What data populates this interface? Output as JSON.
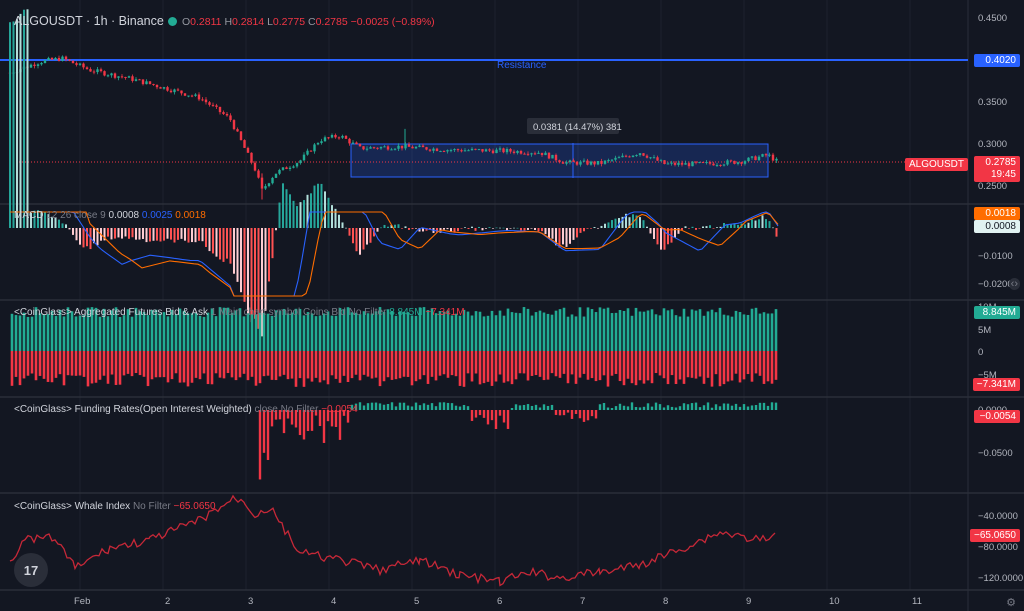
{
  "header": {
    "symbol": "ALGOUSDT · 1h · Binance",
    "o_label": "O",
    "o_val": "0.2811",
    "h_label": "H",
    "h_val": "0.2814",
    "l_label": "L",
    "l_val": "0.2775",
    "c_label": "C",
    "c_val": "0.2785",
    "change": "−0.0025 (−0.89%)"
  },
  "price_axis": [
    "0.4500",
    "0.3500",
    "0.3000",
    "0.2500"
  ],
  "resistance": {
    "label": "Resistance",
    "price": "0.4020"
  },
  "last_price": {
    "symbol": "ALGOUSDT",
    "price": "0.2785",
    "countdown": "19:45"
  },
  "range_box": {
    "measure": "0.0381 (14.47%) 381"
  },
  "macd": {
    "name": "MACD",
    "params": "12 26 close 9",
    "v1": "0.0008",
    "v2": "0.0025",
    "v3": "0.0018",
    "tag_orange": "0.0018",
    "tag_white": "0.0008",
    "axis": [
      "−0.0100",
      "−0.0200"
    ]
  },
  "bid_ask": {
    "name": "<CoinGlass> Aggregated Futures Bid & Ask",
    "params": "1 Main chart symbol Coins Bid No Filter",
    "v1": "8.845M",
    "v2": "−7.341M",
    "axis": [
      "10M",
      "5M",
      "0",
      "−5M"
    ],
    "tag_green": "8.845M",
    "tag_red": "−7.341M"
  },
  "funding": {
    "name": "<CoinGlass> Funding Rates(Open Interest Weighted)",
    "params": "close No Filter",
    "v1": "−0.0054",
    "axis": [
      "0.0000",
      "−0.0500"
    ],
    "tag_red": "−0.0054"
  },
  "whale": {
    "name": "<CoinGlass> Whale Index",
    "params": "No Filter",
    "v1": "−65.0650",
    "axis": [
      "−40.0000",
      "−80.0000",
      "−120.0000"
    ],
    "tag_red": "−65.0650"
  },
  "time_axis": [
    "Feb",
    "2",
    "3",
    "4",
    "5",
    "6",
    "7",
    "8",
    "9",
    "10",
    "11"
  ],
  "logo": "17",
  "colors": {
    "up": "#22ab94",
    "down": "#f23645",
    "accent": "#2962ff",
    "bg": "#131722"
  }
}
